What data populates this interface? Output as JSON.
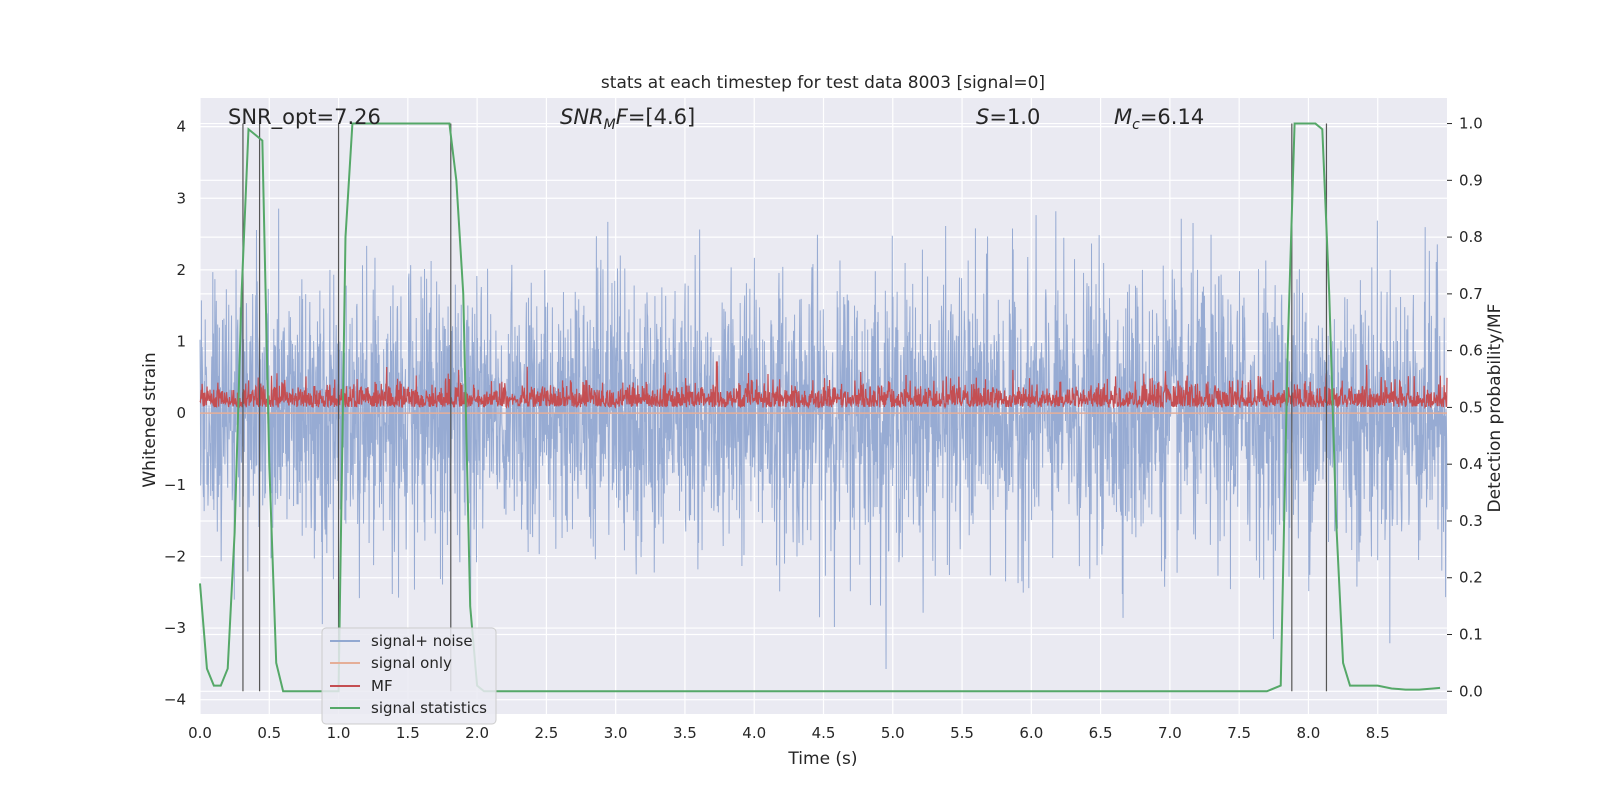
{
  "chart_data": {
    "type": "line",
    "title": "stats at each timestep for test data 8003 [signal=0]",
    "xlabel": "Time (s)",
    "ylabel_left": "Whitened strain",
    "ylabel_right": "Detection probability/MF",
    "xlim": [
      0.0,
      9.0
    ],
    "ylim_left": [
      -4.2,
      4.4
    ],
    "ylim_right": [
      -0.04,
      1.045
    ],
    "grid": true,
    "legend_location": "lower-left",
    "x_ticks": [
      0.0,
      0.5,
      1.0,
      1.5,
      2.0,
      2.5,
      3.0,
      3.5,
      4.0,
      4.5,
      5.0,
      5.5,
      6.0,
      6.5,
      7.0,
      7.5,
      8.0,
      8.5
    ],
    "x_tick_labels": [
      "0.0",
      "0.5",
      "1.0",
      "1.5",
      "2.0",
      "2.5",
      "3.0",
      "3.5",
      "4.0",
      "4.5",
      "5.0",
      "5.5",
      "6.0",
      "6.5",
      "7.0",
      "7.5",
      "8.0",
      "8.5"
    ],
    "y_left_ticks": [
      4,
      3,
      2,
      1,
      0,
      -1,
      -2,
      -3,
      -4
    ],
    "y_left_tick_labels": [
      "4",
      "3",
      "2",
      "1",
      "0",
      "−1",
      "−2",
      "−3",
      "−4"
    ],
    "y_right_ticks": [
      1.0,
      0.9,
      0.8,
      0.7,
      0.6,
      0.5,
      0.4,
      0.3,
      0.2,
      0.1,
      0.0
    ],
    "y_right_tick_labels": [
      "1.0",
      "0.9",
      "0.8",
      "0.7",
      "0.6",
      "0.5",
      "0.4",
      "0.3",
      "0.2",
      "0.1",
      "0.0"
    ],
    "annotations": [
      {
        "id": "snr_opt",
        "text": "SNR_opt=7.26"
      },
      {
        "id": "snr_mf",
        "text": "=[4.6]"
      },
      {
        "id": "s",
        "text": "=1.0"
      },
      {
        "id": "mc",
        "text": "=6.14"
      }
    ],
    "vertical_markers": [
      0.31,
      0.43,
      1.0,
      1.81,
      7.88,
      8.13
    ],
    "series": [
      {
        "name": "signal+ noise",
        "axis": "left",
        "color": "#92a8d1",
        "style": "dense noise, amplitude mostly within -2.2..2.6 with spikes to about 4.0 and -3.6"
      },
      {
        "name": "signal only",
        "axis": "left",
        "color": "#e5ae98",
        "values_constant": 0.0
      },
      {
        "name": "MF",
        "axis": "right",
        "color": "#c44e52",
        "style": "dense noise between about 0.50 and 0.57, peak about 0.58 near t=3.73"
      },
      {
        "name": "signal statistics",
        "axis": "right",
        "color": "#55a868",
        "x": [
          0.0,
          0.05,
          0.1,
          0.15,
          0.2,
          0.25,
          0.3,
          0.35,
          0.4,
          0.45,
          0.5,
          0.55,
          0.6,
          0.65,
          0.7,
          0.75,
          0.8,
          0.85,
          0.9,
          0.95,
          1.0,
          1.05,
          1.1,
          1.15,
          1.2,
          1.4,
          1.6,
          1.7,
          1.8,
          1.85,
          1.9,
          1.95,
          2.0,
          2.05,
          2.5,
          3.0,
          4.0,
          5.0,
          6.0,
          7.0,
          7.7,
          7.8,
          7.85,
          7.9,
          7.95,
          8.0,
          8.05,
          8.1,
          8.15,
          8.2,
          8.25,
          8.3,
          8.35,
          8.4,
          8.5,
          8.6,
          8.7,
          8.8,
          8.9,
          8.95
        ],
        "y": [
          0.19,
          0.04,
          0.01,
          0.01,
          0.04,
          0.28,
          0.7,
          0.99,
          0.98,
          0.97,
          0.4,
          0.05,
          0.0,
          0.0,
          0.0,
          0.0,
          0.0,
          0.0,
          0.0,
          0.0,
          0.0,
          0.8,
          1.0,
          1.0,
          1.0,
          1.0,
          1.0,
          1.0,
          1.0,
          0.9,
          0.7,
          0.15,
          0.01,
          0.0,
          0.0,
          0.0,
          0.0,
          0.0,
          0.0,
          0.0,
          0.0,
          0.01,
          0.6,
          1.0,
          1.0,
          1.0,
          1.0,
          0.99,
          0.7,
          0.3,
          0.05,
          0.01,
          0.01,
          0.01,
          0.01,
          0.005,
          0.003,
          0.003,
          0.005,
          0.006
        ]
      }
    ]
  }
}
